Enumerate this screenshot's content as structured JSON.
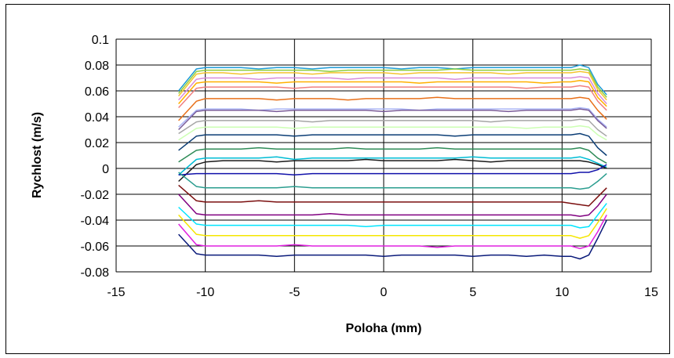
{
  "chart_data": {
    "type": "line",
    "title": "",
    "xlabel": "Poloha (mm)",
    "ylabel": "Rychlost (m/s)",
    "xlim": [
      -15,
      15
    ],
    "ylim": [
      -0.08,
      0.1
    ],
    "x_ticks": [
      "-15",
      "-10",
      "-5",
      "0",
      "5",
      "10",
      "15"
    ],
    "y_ticks": [
      "0.1",
      "0.08",
      "0.06",
      "0.04",
      "0.02",
      "0",
      "-0.02",
      "-0.04",
      "-0.06",
      "-0.08"
    ],
    "x_tick_values": [
      -15,
      -10,
      -5,
      0,
      5,
      10,
      15
    ],
    "y_tick_values": [
      0.1,
      0.08,
      0.06,
      0.04,
      0.02,
      0,
      -0.02,
      -0.04,
      -0.06,
      -0.08
    ],
    "grid": true,
    "legend": "none",
    "x": [
      -11.5,
      -10.5,
      -10.0,
      -9.0,
      -8.0,
      -7.0,
      -6.0,
      -5.0,
      -4.0,
      -3.0,
      -2.0,
      -1.0,
      0.0,
      1.0,
      2.0,
      3.0,
      4.0,
      5.0,
      6.0,
      7.0,
      8.0,
      9.0,
      10.0,
      10.5,
      11.0,
      11.5,
      12.0,
      12.5
    ],
    "series": [
      {
        "color": "#1f9bd6",
        "values": [
          0.06,
          0.077,
          0.078,
          0.078,
          0.078,
          0.077,
          0.078,
          0.078,
          0.077,
          0.078,
          0.078,
          0.078,
          0.078,
          0.077,
          0.078,
          0.078,
          0.077,
          0.078,
          0.078,
          0.078,
          0.078,
          0.078,
          0.078,
          0.078,
          0.08,
          0.078,
          0.065,
          0.057
        ]
      },
      {
        "color": "#8fce3e",
        "values": [
          0.058,
          0.075,
          0.076,
          0.076,
          0.076,
          0.076,
          0.076,
          0.076,
          0.076,
          0.075,
          0.076,
          0.076,
          0.076,
          0.076,
          0.076,
          0.076,
          0.077,
          0.076,
          0.076,
          0.076,
          0.076,
          0.076,
          0.076,
          0.076,
          0.077,
          0.076,
          0.063,
          0.055
        ]
      },
      {
        "color": "#f4c430",
        "values": [
          0.056,
          0.073,
          0.074,
          0.074,
          0.073,
          0.074,
          0.074,
          0.074,
          0.073,
          0.074,
          0.074,
          0.074,
          0.074,
          0.073,
          0.074,
          0.074,
          0.074,
          0.074,
          0.074,
          0.073,
          0.074,
          0.074,
          0.074,
          0.074,
          0.075,
          0.074,
          0.061,
          0.053
        ]
      },
      {
        "color": "#d98cd9",
        "values": [
          0.053,
          0.069,
          0.07,
          0.07,
          0.07,
          0.069,
          0.07,
          0.07,
          0.07,
          0.07,
          0.069,
          0.07,
          0.07,
          0.07,
          0.07,
          0.07,
          0.069,
          0.07,
          0.07,
          0.07,
          0.07,
          0.07,
          0.07,
          0.07,
          0.071,
          0.07,
          0.058,
          0.05
        ]
      },
      {
        "color": "#ffb000",
        "values": [
          0.05,
          0.066,
          0.067,
          0.067,
          0.067,
          0.067,
          0.066,
          0.067,
          0.067,
          0.067,
          0.067,
          0.067,
          0.067,
          0.067,
          0.066,
          0.067,
          0.067,
          0.067,
          0.067,
          0.067,
          0.067,
          0.066,
          0.067,
          0.067,
          0.068,
          0.067,
          0.055,
          0.048
        ]
      },
      {
        "color": "#f08080",
        "values": [
          0.047,
          0.062,
          0.063,
          0.063,
          0.063,
          0.063,
          0.063,
          0.062,
          0.063,
          0.063,
          0.063,
          0.063,
          0.063,
          0.063,
          0.063,
          0.063,
          0.063,
          0.063,
          0.063,
          0.063,
          0.062,
          0.063,
          0.063,
          0.063,
          0.064,
          0.063,
          0.052,
          0.045
        ]
      },
      {
        "color": "#e8701a",
        "values": [
          0.037,
          0.052,
          0.054,
          0.054,
          0.054,
          0.054,
          0.053,
          0.054,
          0.054,
          0.054,
          0.053,
          0.054,
          0.054,
          0.054,
          0.054,
          0.055,
          0.054,
          0.054,
          0.054,
          0.054,
          0.054,
          0.054,
          0.054,
          0.054,
          0.055,
          0.054,
          0.045,
          0.038
        ]
      },
      {
        "color": "#a9b4f5",
        "values": [
          0.032,
          0.045,
          0.046,
          0.046,
          0.046,
          0.045,
          0.046,
          0.046,
          0.046,
          0.046,
          0.046,
          0.046,
          0.046,
          0.046,
          0.045,
          0.046,
          0.046,
          0.046,
          0.046,
          0.046,
          0.046,
          0.046,
          0.046,
          0.046,
          0.047,
          0.046,
          0.038,
          0.032
        ]
      },
      {
        "color": "#7a5c99",
        "values": [
          0.03,
          0.044,
          0.045,
          0.045,
          0.045,
          0.045,
          0.044,
          0.045,
          0.045,
          0.045,
          0.045,
          0.045,
          0.044,
          0.045,
          0.045,
          0.045,
          0.045,
          0.045,
          0.045,
          0.044,
          0.045,
          0.045,
          0.045,
          0.045,
          0.046,
          0.045,
          0.037,
          0.031
        ]
      },
      {
        "color": "#a6a6a6",
        "values": [
          0.027,
          0.036,
          0.037,
          0.037,
          0.037,
          0.037,
          0.037,
          0.037,
          0.036,
          0.037,
          0.037,
          0.037,
          0.037,
          0.037,
          0.037,
          0.037,
          0.037,
          0.037,
          0.036,
          0.037,
          0.037,
          0.037,
          0.037,
          0.037,
          0.038,
          0.037,
          0.03,
          0.025
        ]
      },
      {
        "color": "#ccffb3",
        "values": [
          0.022,
          0.031,
          0.032,
          0.032,
          0.032,
          0.032,
          0.032,
          0.031,
          0.032,
          0.032,
          0.032,
          0.032,
          0.032,
          0.032,
          0.032,
          0.032,
          0.032,
          0.032,
          0.032,
          0.032,
          0.031,
          0.032,
          0.032,
          0.032,
          0.033,
          0.032,
          0.026,
          0.022
        ]
      },
      {
        "color": "#0b3d75",
        "values": [
          0.014,
          0.025,
          0.026,
          0.026,
          0.026,
          0.026,
          0.026,
          0.025,
          0.026,
          0.026,
          0.026,
          0.026,
          0.026,
          0.026,
          0.026,
          0.026,
          0.025,
          0.026,
          0.026,
          0.026,
          0.026,
          0.026,
          0.026,
          0.026,
          0.027,
          0.025,
          0.016,
          0.01
        ]
      },
      {
        "color": "#2e8b57",
        "values": [
          0.005,
          0.014,
          0.015,
          0.015,
          0.015,
          0.016,
          0.015,
          0.015,
          0.015,
          0.015,
          0.016,
          0.015,
          0.015,
          0.015,
          0.015,
          0.016,
          0.015,
          0.015,
          0.015,
          0.015,
          0.015,
          0.015,
          0.015,
          0.015,
          0.016,
          0.014,
          0.008,
          0.004
        ]
      },
      {
        "color": "#00bcd4",
        "values": [
          -0.005,
          0.007,
          0.008,
          0.008,
          0.008,
          0.008,
          0.009,
          0.007,
          0.008,
          0.008,
          0.008,
          0.008,
          0.008,
          0.008,
          0.008,
          0.008,
          0.008,
          0.009,
          0.008,
          0.008,
          0.008,
          0.008,
          0.008,
          0.008,
          0.009,
          0.007,
          0.004,
          0.001
        ]
      },
      {
        "color": "#1a1a1a",
        "values": [
          -0.01,
          0.003,
          0.005,
          0.006,
          0.006,
          0.006,
          0.005,
          0.006,
          0.006,
          0.006,
          0.006,
          0.007,
          0.006,
          0.006,
          0.006,
          0.006,
          0.007,
          0.006,
          0.005,
          0.006,
          0.006,
          0.006,
          0.006,
          0.006,
          0.006,
          0.005,
          0.003,
          0.0
        ]
      },
      {
        "color": "#1111aa",
        "values": [
          -0.005,
          -0.004,
          -0.004,
          -0.004,
          -0.004,
          -0.004,
          -0.004,
          -0.005,
          -0.004,
          -0.004,
          -0.004,
          -0.004,
          -0.004,
          -0.004,
          -0.004,
          -0.004,
          -0.004,
          -0.004,
          -0.004,
          -0.004,
          -0.004,
          -0.004,
          -0.004,
          -0.004,
          -0.003,
          -0.003,
          -0.001,
          0.003
        ]
      },
      {
        "color": "#2a9d8f",
        "values": [
          -0.003,
          -0.014,
          -0.015,
          -0.015,
          -0.015,
          -0.015,
          -0.015,
          -0.014,
          -0.015,
          -0.015,
          -0.015,
          -0.015,
          -0.015,
          -0.015,
          -0.015,
          -0.015,
          -0.015,
          -0.015,
          -0.015,
          -0.015,
          -0.015,
          -0.015,
          -0.015,
          -0.015,
          -0.016,
          -0.015,
          -0.01,
          -0.004
        ]
      },
      {
        "color": "#7b0f0f",
        "values": [
          -0.013,
          -0.025,
          -0.026,
          -0.026,
          -0.026,
          -0.025,
          -0.026,
          -0.026,
          -0.026,
          -0.026,
          -0.026,
          -0.026,
          -0.026,
          -0.026,
          -0.026,
          -0.026,
          -0.026,
          -0.026,
          -0.026,
          -0.026,
          -0.026,
          -0.026,
          -0.026,
          -0.027,
          -0.028,
          -0.029,
          -0.022,
          -0.015
        ]
      },
      {
        "color": "#800080",
        "values": [
          -0.02,
          -0.035,
          -0.036,
          -0.036,
          -0.036,
          -0.036,
          -0.036,
          -0.036,
          -0.036,
          -0.035,
          -0.036,
          -0.036,
          -0.036,
          -0.036,
          -0.036,
          -0.036,
          -0.036,
          -0.036,
          -0.036,
          -0.036,
          -0.036,
          -0.036,
          -0.036,
          -0.036,
          -0.037,
          -0.036,
          -0.029,
          -0.02
        ]
      },
      {
        "color": "#00e5ff",
        "values": [
          -0.03,
          -0.043,
          -0.044,
          -0.044,
          -0.044,
          -0.044,
          -0.044,
          -0.044,
          -0.044,
          -0.044,
          -0.044,
          -0.045,
          -0.044,
          -0.044,
          -0.044,
          -0.044,
          -0.044,
          -0.044,
          -0.044,
          -0.044,
          -0.044,
          -0.044,
          -0.044,
          -0.044,
          -0.046,
          -0.045,
          -0.036,
          -0.027
        ]
      },
      {
        "color": "#f5e600",
        "values": [
          -0.036,
          -0.051,
          -0.052,
          -0.052,
          -0.052,
          -0.052,
          -0.052,
          -0.052,
          -0.052,
          -0.052,
          -0.052,
          -0.052,
          -0.052,
          -0.052,
          -0.052,
          -0.052,
          -0.052,
          -0.052,
          -0.052,
          -0.052,
          -0.052,
          -0.052,
          -0.052,
          -0.052,
          -0.054,
          -0.052,
          -0.042,
          -0.031
        ]
      },
      {
        "color": "#e020e0",
        "values": [
          -0.043,
          -0.059,
          -0.06,
          -0.06,
          -0.06,
          -0.06,
          -0.06,
          -0.059,
          -0.06,
          -0.06,
          -0.06,
          -0.06,
          -0.06,
          -0.06,
          -0.06,
          -0.061,
          -0.06,
          -0.06,
          -0.06,
          -0.06,
          -0.06,
          -0.06,
          -0.06,
          -0.06,
          -0.062,
          -0.06,
          -0.049,
          -0.036
        ]
      },
      {
        "color": "#0a1a7a",
        "values": [
          -0.051,
          -0.066,
          -0.067,
          -0.067,
          -0.067,
          -0.067,
          -0.068,
          -0.067,
          -0.067,
          -0.067,
          -0.067,
          -0.067,
          -0.068,
          -0.067,
          -0.067,
          -0.067,
          -0.067,
          -0.068,
          -0.067,
          -0.067,
          -0.068,
          -0.067,
          -0.068,
          -0.068,
          -0.07,
          -0.067,
          -0.054,
          -0.04
        ]
      }
    ]
  }
}
